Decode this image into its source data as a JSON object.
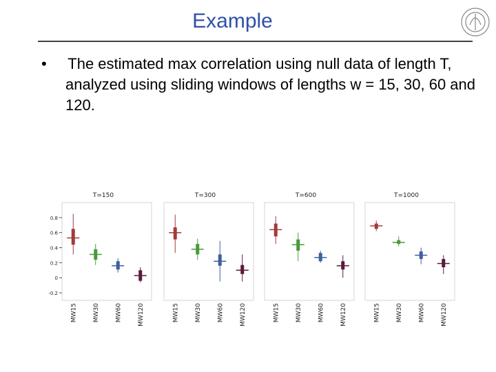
{
  "title": "Example",
  "bullet": "The estimated max correlation using null data of length T, analyzed using sliding windows of lengths w = 15, 30, 60 and 120.",
  "chart_data": [
    {
      "type": "box",
      "title": "T=150",
      "categories": [
        "MW15",
        "MW30",
        "MW60",
        "MW120"
      ],
      "colors": [
        "#a33a3a",
        "#4a9a3a",
        "#3f5f9f",
        "#5a1a3a"
      ],
      "ylim": [
        -0.3,
        1.0
      ],
      "yticks": [
        -0.2,
        0,
        0.2,
        0.4,
        0.6,
        0.8
      ],
      "boxes": [
        {
          "whisker_low": 0.31,
          "q1": 0.44,
          "median": 0.53,
          "q3": 0.65,
          "whisker_high": 0.85
        },
        {
          "whisker_low": 0.17,
          "q1": 0.24,
          "median": 0.31,
          "q3": 0.38,
          "whisker_high": 0.45
        },
        {
          "whisker_low": 0.07,
          "q1": 0.11,
          "median": 0.16,
          "q3": 0.22,
          "whisker_high": 0.26
        },
        {
          "whisker_low": -0.06,
          "q1": -0.04,
          "median": 0.03,
          "q3": 0.1,
          "whisker_high": 0.14
        }
      ]
    },
    {
      "type": "box",
      "title": "T=300",
      "categories": [
        "MW15",
        "MW30",
        "MW60",
        "MW120"
      ],
      "colors": [
        "#a33a3a",
        "#4a9a3a",
        "#3f5f9f",
        "#5a1a3a"
      ],
      "ylim": [
        -0.3,
        1.0
      ],
      "boxes": [
        {
          "whisker_low": 0.33,
          "q1": 0.51,
          "median": 0.6,
          "q3": 0.67,
          "whisker_high": 0.84
        },
        {
          "whisker_low": 0.24,
          "q1": 0.31,
          "median": 0.38,
          "q3": 0.45,
          "whisker_high": 0.52
        },
        {
          "whisker_low": -0.05,
          "q1": 0.16,
          "median": 0.22,
          "q3": 0.31,
          "whisker_high": 0.49
        },
        {
          "whisker_low": -0.05,
          "q1": 0.05,
          "median": 0.1,
          "q3": 0.17,
          "whisker_high": 0.31
        }
      ]
    },
    {
      "type": "box",
      "title": "T=600",
      "categories": [
        "MW15",
        "MW30",
        "MW60",
        "MW120"
      ],
      "colors": [
        "#a33a3a",
        "#4a9a3a",
        "#3f5f9f",
        "#5a1a3a"
      ],
      "ylim": [
        -0.3,
        1.0
      ],
      "boxes": [
        {
          "whisker_low": 0.45,
          "q1": 0.55,
          "median": 0.64,
          "q3": 0.72,
          "whisker_high": 0.82
        },
        {
          "whisker_low": 0.22,
          "q1": 0.36,
          "median": 0.44,
          "q3": 0.51,
          "whisker_high": 0.6
        },
        {
          "whisker_low": 0.2,
          "q1": 0.22,
          "median": 0.27,
          "q3": 0.33,
          "whisker_high": 0.36
        },
        {
          "whisker_low": 0.0,
          "q1": 0.11,
          "median": 0.16,
          "q3": 0.22,
          "whisker_high": 0.3
        }
      ]
    },
    {
      "type": "box",
      "title": "T=1000",
      "categories": [
        "MW15",
        "MW30",
        "MW60",
        "MW120"
      ],
      "colors": [
        "#a33a3a",
        "#4a9a3a",
        "#3f5f9f",
        "#5a1a3a"
      ],
      "ylim": [
        -0.3,
        1.0
      ],
      "boxes": [
        {
          "whisker_low": 0.62,
          "q1": 0.65,
          "median": 0.69,
          "q3": 0.72,
          "whisker_high": 0.76
        },
        {
          "whisker_low": 0.42,
          "q1": 0.45,
          "median": 0.47,
          "q3": 0.5,
          "whisker_high": 0.55
        },
        {
          "whisker_low": 0.18,
          "q1": 0.25,
          "median": 0.3,
          "q3": 0.35,
          "whisker_high": 0.4
        },
        {
          "whisker_low": 0.05,
          "q1": 0.14,
          "median": 0.19,
          "q3": 0.25,
          "whisker_high": 0.3
        }
      ]
    }
  ]
}
